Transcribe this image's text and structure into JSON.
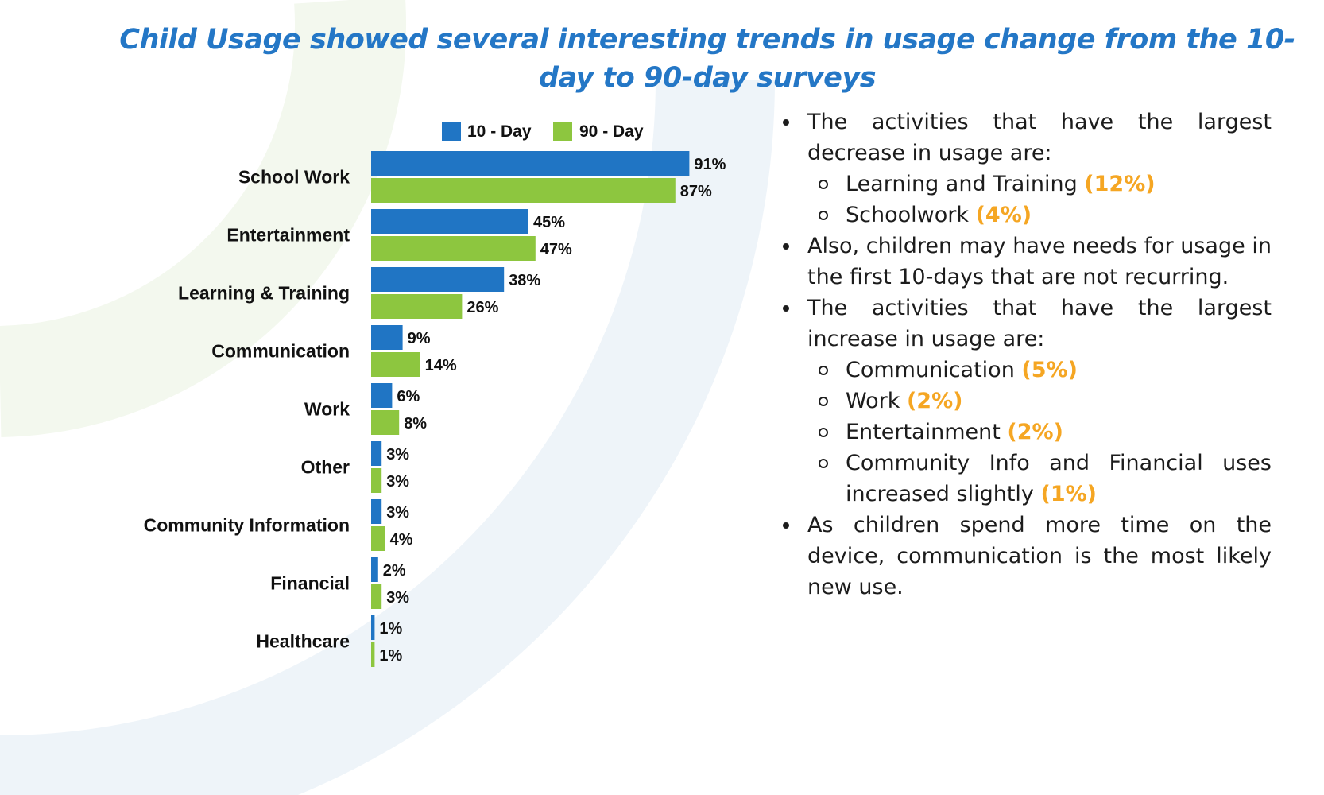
{
  "title": "Child Usage showed several interesting trends in usage change from the 10-day to 90-day surveys",
  "colors": {
    "series_10": "#2075c4",
    "series_90": "#8dc63f",
    "highlight": "#f5a623",
    "title": "#2477c6"
  },
  "chart_data": {
    "type": "bar",
    "orientation": "horizontal",
    "categories": [
      "School Work",
      "Entertainment",
      "Learning & Training",
      "Communication",
      "Work",
      "Other",
      "Community Information",
      "Financial",
      "Healthcare"
    ],
    "series": [
      {
        "name": "10 - Day",
        "values": [
          91,
          45,
          38,
          9,
          6,
          3,
          3,
          2,
          1
        ],
        "labels": [
          "91%",
          "45%",
          "38%",
          "9%",
          "6%",
          "3%",
          "3%",
          "2%",
          "1%"
        ]
      },
      {
        "name": "90 - Day",
        "values": [
          87,
          47,
          26,
          14,
          8,
          3,
          4,
          3,
          1
        ],
        "labels": [
          "87%",
          "47%",
          "26%",
          "14%",
          "8%",
          "3%",
          "4%",
          "3%",
          "1%"
        ]
      }
    ],
    "value_unit": "%",
    "legend_position": "top",
    "grid": false,
    "xlim": [
      0,
      100
    ]
  },
  "notes": [
    {
      "text": "The activities that have the largest decrease in usage are:",
      "sub": [
        {
          "text": "Learning and Training ",
          "highlight": "(12%)"
        },
        {
          "text": "Schoolwork ",
          "highlight": "(4%)"
        }
      ]
    },
    {
      "text": "Also, children may have needs for usage in the first 10-days that are not recurring.",
      "sub": []
    },
    {
      "text": "The activities that have the largest increase in usage are:",
      "sub": [
        {
          "text": "Communication ",
          "highlight": "(5%)"
        },
        {
          "text": "Work ",
          "highlight": "(2%)"
        },
        {
          "text": "Entertainment ",
          "highlight": "(2%)"
        },
        {
          "text": "Community Info and Financial uses increased slightly ",
          "highlight": "(1%)"
        }
      ]
    },
    {
      "text": "As children spend more time on the device, communication is the most likely new use.",
      "sub": []
    }
  ]
}
